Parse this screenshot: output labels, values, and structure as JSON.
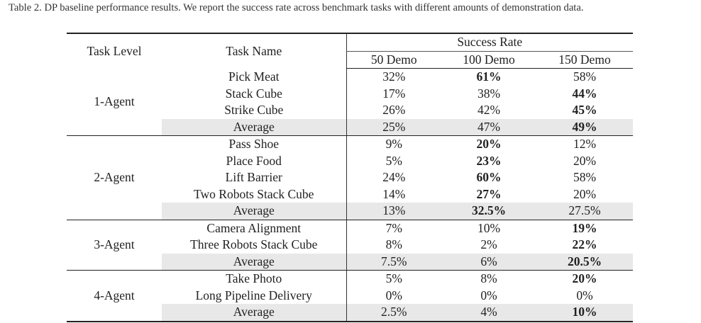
{
  "caption": "Table 2. DP baseline performance results. We report the success rate across benchmark tasks with different amounts of demonstration data.",
  "header": {
    "task_level": "Task Level",
    "task_name": "Task Name",
    "success_rate": "Success Rate",
    "demo50": "50 Demo",
    "demo100": "100 Demo",
    "demo150": "150 Demo"
  },
  "groups": [
    {
      "level": "1-Agent",
      "rows": [
        {
          "name": "Pick Meat",
          "v": [
            "32%",
            "61%",
            "58%"
          ],
          "bold": 1
        },
        {
          "name": "Stack Cube",
          "v": [
            "17%",
            "38%",
            "44%"
          ],
          "bold": 2
        },
        {
          "name": "Strike Cube",
          "v": [
            "26%",
            "42%",
            "45%"
          ],
          "bold": 2
        },
        {
          "name": "Average",
          "v": [
            "25%",
            "47%",
            "49%"
          ],
          "bold": 2,
          "avg": true
        }
      ]
    },
    {
      "level": "2-Agent",
      "rows": [
        {
          "name": "Pass Shoe",
          "v": [
            "9%",
            "20%",
            "12%"
          ],
          "bold": 1
        },
        {
          "name": "Place Food",
          "v": [
            "5%",
            "23%",
            "20%"
          ],
          "bold": 1
        },
        {
          "name": "Lift Barrier",
          "v": [
            "24%",
            "60%",
            "58%"
          ],
          "bold": 1
        },
        {
          "name": "Two Robots Stack Cube",
          "v": [
            "14%",
            "27%",
            "20%"
          ],
          "bold": 1
        },
        {
          "name": "Average",
          "v": [
            "13%",
            "32.5%",
            "27.5%"
          ],
          "bold": 1,
          "avg": true
        }
      ]
    },
    {
      "level": "3-Agent",
      "rows": [
        {
          "name": "Camera Alignment",
          "v": [
            "7%",
            "10%",
            "19%"
          ],
          "bold": 2
        },
        {
          "name": "Three Robots Stack Cube",
          "v": [
            "8%",
            "2%",
            "22%"
          ],
          "bold": 2
        },
        {
          "name": "Average",
          "v": [
            "7.5%",
            "6%",
            "20.5%"
          ],
          "bold": 2,
          "avg": true
        }
      ]
    },
    {
      "level": "4-Agent",
      "rows": [
        {
          "name": "Take Photo",
          "v": [
            "5%",
            "8%",
            "20%"
          ],
          "bold": 2
        },
        {
          "name": "Long Pipeline Delivery",
          "v": [
            "0%",
            "0%",
            "0%"
          ],
          "bold": -1
        },
        {
          "name": "Average",
          "v": [
            "2.5%",
            "4%",
            "10%"
          ],
          "bold": 2,
          "avg": true
        }
      ]
    }
  ]
}
